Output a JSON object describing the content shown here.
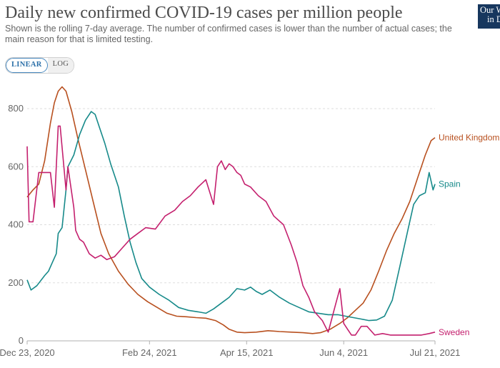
{
  "header": {
    "title": "Daily new confirmed COVID-19 cases per million people",
    "subtitle": "Shown is the rolling 7-day average. The number of confirmed cases is lower than the number of actual cases; the main reason for that is limited testing.",
    "logo_line1": "Our World",
    "logo_line2": "in Data",
    "logo_bg": "#17375e"
  },
  "scale_toggle": {
    "linear_label": "LINEAR",
    "log_label": "LOG",
    "selected": "LINEAR"
  },
  "chart_data": {
    "type": "line",
    "title": "Daily new confirmed COVID-19 cases per million people",
    "xlabel": "",
    "ylabel": "",
    "ylim": [
      0,
      800
    ],
    "yticks": [
      0,
      200,
      400,
      600,
      800
    ],
    "xrange": [
      "2020-12-23",
      "2021-07-21"
    ],
    "xtick_labels": [
      {
        "date": "2020-12-23",
        "label": "Dec 23, 2020"
      },
      {
        "date": "2021-02-24",
        "label": "Feb 24, 2021"
      },
      {
        "date": "2021-04-15",
        "label": "Apr 15, 2021"
      },
      {
        "date": "2021-06-04",
        "label": "Jun 4, 2021"
      },
      {
        "date": "2021-07-21",
        "label": "Jul 21, 2021"
      }
    ],
    "grid": "horizontal dashed",
    "legend": "line-end labels",
    "series": [
      {
        "name": "United Kingdom",
        "color": "#b8501f",
        "x": [
          "2020-12-23",
          "2020-12-26",
          "2020-12-29",
          "2021-01-01",
          "2021-01-04",
          "2021-01-06",
          "2021-01-08",
          "2021-01-10",
          "2021-01-12",
          "2021-01-15",
          "2021-01-18",
          "2021-01-22",
          "2021-01-26",
          "2021-01-30",
          "2021-02-03",
          "2021-02-08",
          "2021-02-13",
          "2021-02-18",
          "2021-02-23",
          "2021-02-28",
          "2021-03-05",
          "2021-03-10",
          "2021-03-15",
          "2021-03-20",
          "2021-03-25",
          "2021-03-30",
          "2021-04-03",
          "2021-04-06",
          "2021-04-10",
          "2021-04-14",
          "2021-04-20",
          "2021-04-26",
          "2021-05-02",
          "2021-05-08",
          "2021-05-14",
          "2021-05-19",
          "2021-05-23",
          "2021-05-28",
          "2021-06-02",
          "2021-06-06",
          "2021-06-10",
          "2021-06-14",
          "2021-06-18",
          "2021-06-22",
          "2021-06-26",
          "2021-06-30",
          "2021-07-04",
          "2021-07-08",
          "2021-07-12",
          "2021-07-16",
          "2021-07-19",
          "2021-07-21"
        ],
        "values": [
          495,
          520,
          540,
          620,
          750,
          820,
          860,
          875,
          860,
          790,
          700,
          590,
          480,
          370,
          300,
          240,
          195,
          160,
          135,
          115,
          95,
          85,
          83,
          80,
          78,
          70,
          55,
          40,
          30,
          28,
          30,
          35,
          32,
          30,
          28,
          25,
          28,
          40,
          60,
          80,
          105,
          130,
          175,
          240,
          310,
          370,
          420,
          480,
          560,
          640,
          690,
          700
        ]
      },
      {
        "name": "Spain",
        "color": "#178a8a",
        "x": [
          "2020-12-23",
          "2020-12-25",
          "2020-12-28",
          "2021-01-01",
          "2021-01-03",
          "2021-01-05",
          "2021-01-07",
          "2021-01-08",
          "2021-01-10",
          "2021-01-12",
          "2021-01-13",
          "2021-01-16",
          "2021-01-19",
          "2021-01-22",
          "2021-01-25",
          "2021-01-27",
          "2021-01-29",
          "2021-02-01",
          "2021-02-04",
          "2021-02-08",
          "2021-02-11",
          "2021-02-14",
          "2021-02-17",
          "2021-02-20",
          "2021-02-24",
          "2021-03-01",
          "2021-03-06",
          "2021-03-11",
          "2021-03-16",
          "2021-03-21",
          "2021-03-25",
          "2021-03-29",
          "2021-04-02",
          "2021-04-06",
          "2021-04-10",
          "2021-04-14",
          "2021-04-17",
          "2021-04-20",
          "2021-04-23",
          "2021-04-27",
          "2021-05-02",
          "2021-05-07",
          "2021-05-12",
          "2021-05-17",
          "2021-05-22",
          "2021-05-27",
          "2021-06-01",
          "2021-06-05",
          "2021-06-09",
          "2021-06-13",
          "2021-06-17",
          "2021-06-21",
          "2021-06-25",
          "2021-06-29",
          "2021-07-03",
          "2021-07-07",
          "2021-07-10",
          "2021-07-13",
          "2021-07-16",
          "2021-07-18",
          "2021-07-20",
          "2021-07-21"
        ],
        "values": [
          210,
          175,
          190,
          225,
          240,
          270,
          300,
          370,
          390,
          520,
          600,
          640,
          710,
          760,
          790,
          780,
          740,
          680,
          610,
          530,
          430,
          340,
          270,
          215,
          185,
          160,
          140,
          115,
          105,
          100,
          95,
          110,
          130,
          150,
          180,
          175,
          185,
          170,
          160,
          175,
          150,
          130,
          115,
          100,
          95,
          90,
          90,
          85,
          80,
          75,
          70,
          72,
          85,
          140,
          260,
          380,
          470,
          500,
          510,
          580,
          520,
          540
        ]
      },
      {
        "name": "Sweden",
        "color": "#c4206e",
        "x": [
          "2020-12-23",
          "2020-12-24",
          "2020-12-26",
          "2020-12-29",
          "2021-01-01",
          "2021-01-04",
          "2021-01-06",
          "2021-01-08",
          "2021-01-09",
          "2021-01-12",
          "2021-01-13",
          "2021-01-16",
          "2021-01-17",
          "2021-01-19",
          "2021-01-21",
          "2021-01-24",
          "2021-01-27",
          "2021-01-30",
          "2021-02-02",
          "2021-02-06",
          "2021-02-10",
          "2021-02-14",
          "2021-02-18",
          "2021-02-22",
          "2021-02-27",
          "2021-03-04",
          "2021-03-09",
          "2021-03-13",
          "2021-03-17",
          "2021-03-21",
          "2021-03-25",
          "2021-03-29",
          "2021-03-31",
          "2021-04-02",
          "2021-04-04",
          "2021-04-06",
          "2021-04-08",
          "2021-04-10",
          "2021-04-12",
          "2021-04-14",
          "2021-04-17",
          "2021-04-21",
          "2021-04-25",
          "2021-04-29",
          "2021-05-04",
          "2021-05-08",
          "2021-05-11",
          "2021-05-14",
          "2021-05-17",
          "2021-05-20",
          "2021-05-24",
          "2021-05-27",
          "2021-05-29",
          "2021-05-31",
          "2021-06-02",
          "2021-06-04",
          "2021-06-06",
          "2021-06-08",
          "2021-06-10",
          "2021-06-13",
          "2021-06-16",
          "2021-06-20",
          "2021-06-24",
          "2021-06-28",
          "2021-07-02",
          "2021-07-06",
          "2021-07-10",
          "2021-07-14",
          "2021-07-18",
          "2021-07-21"
        ],
        "values": [
          670,
          410,
          410,
          580,
          580,
          580,
          460,
          740,
          740,
          520,
          600,
          460,
          380,
          350,
          340,
          300,
          285,
          295,
          280,
          290,
          320,
          350,
          370,
          390,
          385,
          430,
          450,
          480,
          500,
          530,
          555,
          470,
          600,
          620,
          590,
          610,
          600,
          580,
          570,
          540,
          530,
          500,
          480,
          430,
          400,
          330,
          270,
          190,
          150,
          100,
          70,
          30,
          80,
          130,
          180,
          60,
          40,
          20,
          20,
          50,
          50,
          20,
          25,
          20,
          20,
          20,
          20,
          20,
          25,
          30
        ]
      }
    ]
  }
}
